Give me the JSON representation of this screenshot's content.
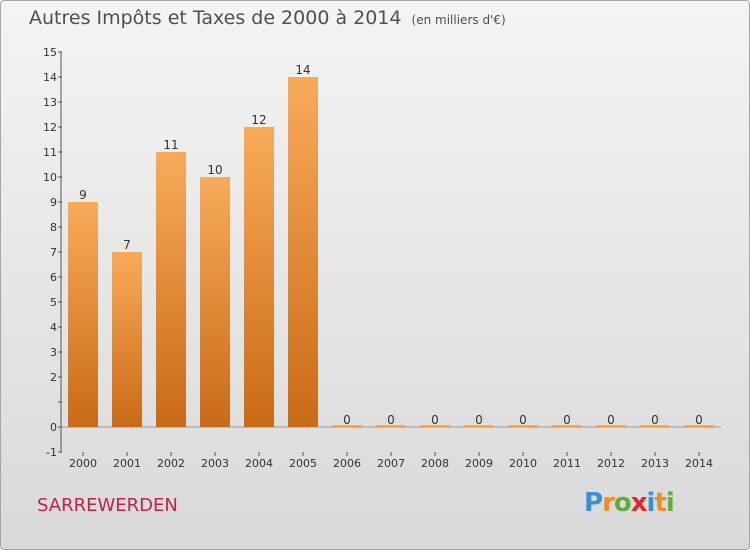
{
  "title": "Autres Impôts et Taxes de 2000 à 2014",
  "title_unit": "(en milliers d'€)",
  "commune": "SARREWERDEN",
  "logo": {
    "letters": [
      "P",
      "r",
      "o",
      "x",
      "i",
      "t",
      "i"
    ],
    "colors": [
      "#3a8fd6",
      "#f28c1e",
      "#5fae3c",
      "#e2262b",
      "#3a8fd6",
      "#f28c1e",
      "#5fae3c"
    ]
  },
  "colors": {
    "bar": "#f0922e",
    "bar_light": "#f7ab5a",
    "bar_dark": "#c96a17",
    "axis": "#555555",
    "text": "#333333"
  },
  "chart_data": {
    "type": "bar",
    "categories": [
      "2000",
      "2001",
      "2002",
      "2003",
      "2004",
      "2005",
      "2006",
      "2007",
      "2008",
      "2009",
      "2010",
      "2011",
      "2012",
      "2013",
      "2014"
    ],
    "values": [
      9,
      7,
      11,
      10,
      12,
      14,
      0,
      0,
      0,
      0,
      0,
      0,
      0,
      0,
      0
    ],
    "data_labels": [
      "9",
      "7",
      "11",
      "10",
      "12",
      "14",
      "0",
      "0",
      "0",
      "0",
      "0",
      "0",
      "0",
      "0",
      "0"
    ],
    "ylim": [
      -1,
      15
    ],
    "yticks": [
      "-1",
      "0",
      "",
      "2",
      "3",
      "4",
      "5",
      "6",
      "7",
      "8",
      "9",
      "10",
      "11",
      "12",
      "13",
      "14",
      "15"
    ],
    "title": "Autres Impôts et Taxes de 2000 à 2014",
    "xlabel": "",
    "ylabel": ""
  }
}
